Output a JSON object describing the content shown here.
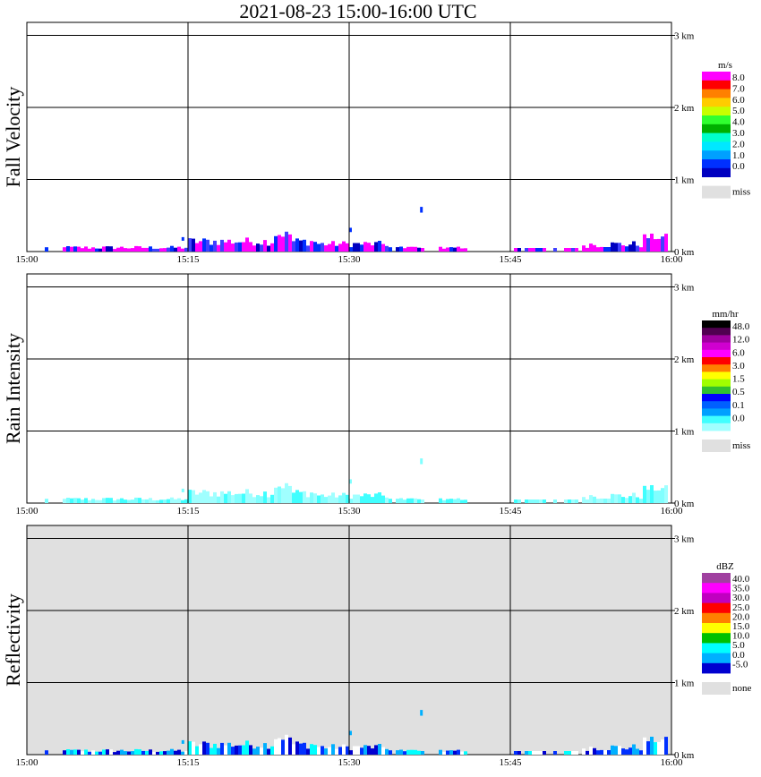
{
  "title": "2021-08-23   15:00-16:00 UTC",
  "x_ticks": [
    "15:00",
    "15:15",
    "15:30",
    "15:45",
    "16:00"
  ],
  "y_ticks": [
    "0 km",
    "1 km",
    "2 km",
    "3 km"
  ],
  "panels": [
    {
      "ylabel": "Fall Velocity",
      "background": "#ffffff",
      "legend": {
        "unit": "m/s",
        "colors": [
          "#ff00ff",
          "#ff0000",
          "#ff8000",
          "#ffcc00",
          "#c8ff00",
          "#30ff30",
          "#00b000",
          "#00ffcc",
          "#00e8ff",
          "#00a0ff",
          "#0030ff",
          "#0000c0"
        ],
        "labels": [
          "8.0",
          "7.0",
          "6.0",
          "5.0",
          "4.0",
          "3.0",
          "2.0",
          "1.0",
          "0.0"
        ],
        "miss_label": "miss"
      }
    },
    {
      "ylabel": "Rain Intensity",
      "background": "#ffffff",
      "legend": {
        "unit": "mm/hr",
        "colors": [
          "#000000",
          "#500050",
          "#a000a0",
          "#d000d0",
          "#ff00ff",
          "#ff0000",
          "#ff8000",
          "#ffff00",
          "#a0ff00",
          "#30c030",
          "#0000ff",
          "#0060ff",
          "#00a0ff",
          "#40ffff",
          "#a0ffff"
        ],
        "labels": [
          "48.0",
          "12.0",
          "6.0",
          "3.0",
          "1.5",
          "0.5",
          "0.1",
          "0.0"
        ],
        "miss_label": "miss"
      }
    },
    {
      "ylabel": "Reflectivity",
      "background": "#e0e0e0",
      "legend": {
        "unit": "dBZ",
        "colors": [
          "#a040a0",
          "#ff00ff",
          "#c000c0",
          "#ff0000",
          "#ff8000",
          "#ffff00",
          "#00c000",
          "#00ffff",
          "#00b0ff",
          "#0000d0"
        ],
        "labels": [
          "40.0",
          "35.0",
          "30.0",
          "25.0",
          "20.0",
          "15.0",
          "10.0",
          "5.0",
          "0.0",
          "-5.0"
        ],
        "miss_label": "none"
      }
    }
  ],
  "chart_data": [
    {
      "type": "heatmap",
      "title": "2021-08-23   15:00-16:00 UTC",
      "ylabel": "Fall Velocity",
      "x_range": [
        "15:00",
        "16:00"
      ],
      "y_range_km": [
        0,
        3.2
      ],
      "unit": "m/s",
      "approx_max_echo_height_km": 0.65,
      "grid": true
    },
    {
      "type": "heatmap",
      "ylabel": "Rain Intensity",
      "x_range": [
        "15:00",
        "16:00"
      ],
      "y_range_km": [
        0,
        3.2
      ],
      "unit": "mm/hr",
      "approx_max_echo_height_km": 0.65,
      "grid": true
    },
    {
      "type": "heatmap",
      "ylabel": "Reflectivity",
      "x_range": [
        "15:00",
        "16:00"
      ],
      "y_range_km": [
        0,
        3.2
      ],
      "unit": "dBZ",
      "approx_max_echo_height_km": 0.65,
      "grid": true
    }
  ]
}
